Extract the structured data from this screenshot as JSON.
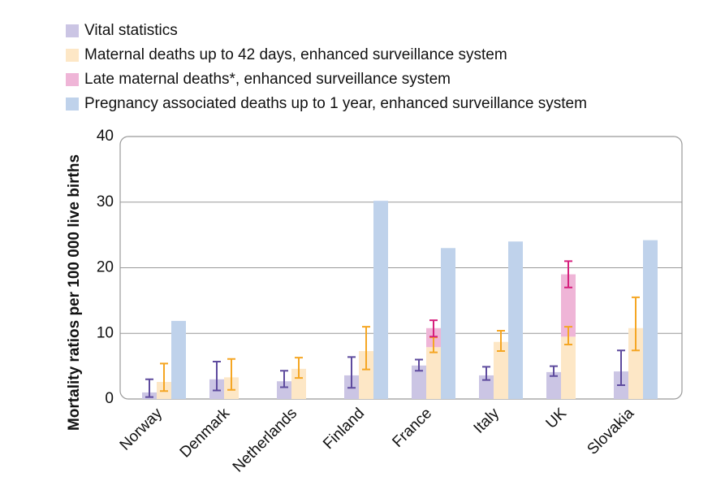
{
  "chart_data": {
    "type": "bar",
    "ylabel": "Mortality ratios per 100 000 live births",
    "categories": [
      "Norway",
      "Denmark",
      "Netherlands",
      "Finland",
      "France",
      "Italy",
      "UK",
      "Slovakia"
    ],
    "ylim": [
      0,
      40
    ],
    "yticks": [
      0,
      10,
      20,
      30,
      40
    ],
    "grid": true,
    "series": [
      {
        "name": "Vital statistics",
        "color": "#cbc5e4",
        "error_color": "#5e4b9e",
        "values": [
          1.0,
          3.0,
          2.7,
          3.6,
          5.1,
          3.6,
          4.1,
          4.2
        ],
        "errors": [
          [
            0.3,
            3.0
          ],
          [
            1.3,
            5.7
          ],
          [
            1.8,
            4.3
          ],
          [
            1.7,
            6.4
          ],
          [
            4.3,
            6.0
          ],
          [
            2.9,
            4.9
          ],
          [
            3.5,
            5.0
          ],
          [
            2.1,
            7.4
          ]
        ]
      },
      {
        "name": "Maternal deaths up to 42 days, enhanced surveillance system",
        "color": "#fde7c6",
        "error_color": "#f5a623",
        "values": [
          2.6,
          3.3,
          4.6,
          7.3,
          7.9,
          8.7,
          9.5,
          10.8
        ],
        "errors": [
          [
            1.2,
            5.4
          ],
          [
            1.4,
            6.1
          ],
          [
            3.2,
            6.3
          ],
          [
            4.5,
            11.0
          ],
          [
            7.1,
            9.4
          ],
          [
            7.3,
            10.4
          ],
          [
            8.3,
            11.0
          ],
          [
            7.4,
            15.5
          ]
        ]
      },
      {
        "name": "Late maternal deaths*, enhanced surveillance system",
        "color": "#efb5d7",
        "error_color": "#d6207d",
        "stacked_on_previous": true,
        "values": [
          null,
          null,
          null,
          null,
          2.9,
          null,
          9.5,
          null
        ],
        "errors": [
          null,
          null,
          null,
          null,
          [
            9.5,
            12.0
          ],
          null,
          [
            17.0,
            21.0
          ],
          null
        ]
      },
      {
        "name": "Pregnancy associated deaths up to 1 year, enhanced surveillance system",
        "color": "#bfd2eb",
        "values": [
          11.9,
          null,
          null,
          30.2,
          23.0,
          24.0,
          null,
          24.2
        ],
        "errors": [
          null,
          null,
          null,
          null,
          null,
          null,
          null,
          null
        ]
      }
    ]
  }
}
